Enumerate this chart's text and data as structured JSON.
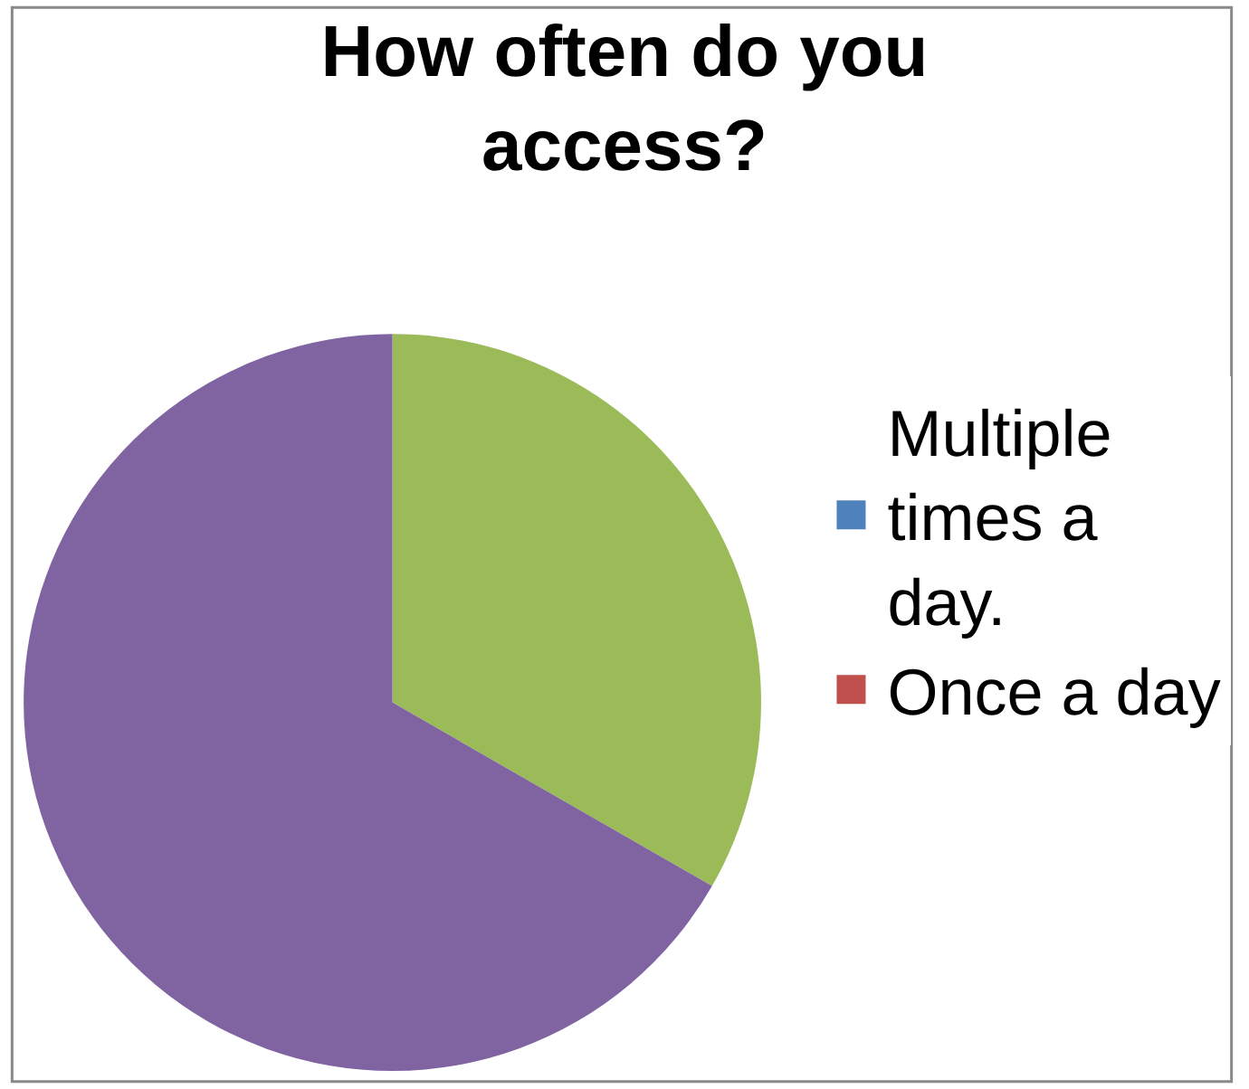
{
  "chart_data": {
    "type": "pie",
    "title": "How often do you access?",
    "categories": [
      "Multiple times a day.",
      "Once a day",
      null,
      null
    ],
    "values": [
      0,
      0,
      33.3,
      66.7
    ],
    "colors": [
      "#4f81bd",
      "#c0504d",
      "#9bbb59",
      "#8064a2"
    ],
    "legend": "right"
  }
}
